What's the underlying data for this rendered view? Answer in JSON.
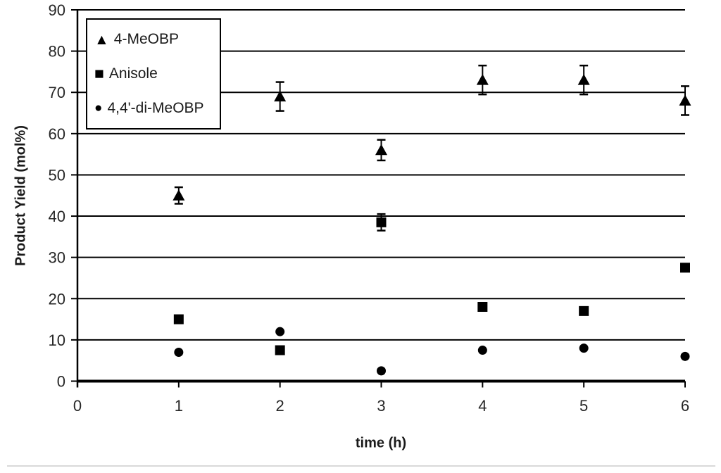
{
  "chart_data": {
    "type": "scatter",
    "title": "",
    "xlabel": "time (h)",
    "ylabel": "Product Yield (mol%)",
    "xlim": [
      0,
      6
    ],
    "ylim": [
      0,
      90
    ],
    "xticks": [
      0,
      1,
      2,
      3,
      4,
      5,
      6
    ],
    "yticks": [
      0,
      10,
      20,
      30,
      40,
      50,
      60,
      70,
      80,
      90
    ],
    "grid": "horizontal-black",
    "legend_position": "top-left",
    "x": [
      1,
      2,
      3,
      4,
      5,
      6
    ],
    "series": [
      {
        "name": "4-MeOBP",
        "marker": "triangle",
        "values": [
          45,
          69,
          56,
          73,
          73,
          68
        ],
        "yerr": [
          2,
          3.5,
          2.5,
          3.5,
          3.5,
          3.5
        ]
      },
      {
        "name": "Anisole",
        "marker": "square",
        "values": [
          15,
          7.5,
          38.5,
          18,
          17,
          27.5
        ],
        "yerr": [
          0,
          0,
          2,
          0,
          0,
          0
        ]
      },
      {
        "name": "4,4'-di-MeOBP",
        "marker": "circle",
        "values": [
          7,
          12,
          2.5,
          7.5,
          8,
          6
        ],
        "yerr": [
          0,
          0,
          0,
          0,
          0,
          0
        ]
      }
    ],
    "marker_glyphs": {
      "triangle": "▲",
      "square": "■",
      "circle": "●"
    },
    "colors": {
      "marker": "#000000",
      "grid": "#000000",
      "axis": "#000000",
      "text": "#262626",
      "background": "#ffffff",
      "bottom_rule": "#d9d9d9"
    }
  }
}
